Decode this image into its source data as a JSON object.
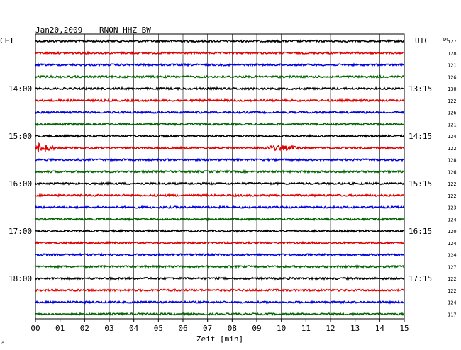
{
  "header": {
    "date": "Jan20,2009",
    "station": "RNON HHZ BW"
  },
  "left_label": "CET",
  "right_label": "UTC",
  "dc_label": "DC",
  "xlabel": "Zeit [min]",
  "corner_mark": "^",
  "colors": [
    "#000000",
    "#e00000",
    "#0000e0",
    "#006400"
  ],
  "chart_data": {
    "type": "line",
    "title": "Jan20,2009 RNON HHZ BW",
    "xlabel": "Zeit [min]",
    "xlim": [
      0,
      15
    ],
    "x_ticks": [
      "00",
      "01",
      "02",
      "03",
      "04",
      "05",
      "06",
      "07",
      "08",
      "09",
      "10",
      "11",
      "12",
      "13",
      "14",
      "15"
    ],
    "trace_count": 24,
    "left_hour_labels": [
      {
        "trace": 4,
        "label": "14:00"
      },
      {
        "trace": 8,
        "label": "15:00"
      },
      {
        "trace": 12,
        "label": "16:00"
      },
      {
        "trace": 16,
        "label": "17:00"
      },
      {
        "trace": 20,
        "label": "18:00"
      }
    ],
    "right_hour_labels": [
      {
        "trace": 4,
        "label": "13:15"
      },
      {
        "trace": 8,
        "label": "14:15"
      },
      {
        "trace": 12,
        "label": "15:15"
      },
      {
        "trace": 16,
        "label": "16:15"
      },
      {
        "trace": 20,
        "label": "17:15"
      }
    ],
    "dc_values": [
      "127",
      "128",
      "121",
      "126",
      "130",
      "122",
      "126",
      "121",
      "124",
      "122",
      "128",
      "126",
      "122",
      "122",
      "123",
      "124",
      "120",
      "124",
      "124",
      "127",
      "122",
      "122",
      "124",
      "117"
    ],
    "events": [
      {
        "trace": 9,
        "start_min": 0.0,
        "end_min": 1.0,
        "amplitude": "high"
      },
      {
        "trace": 9,
        "start_min": 9.0,
        "end_min": 11.0,
        "amplitude": "medium"
      }
    ]
  }
}
